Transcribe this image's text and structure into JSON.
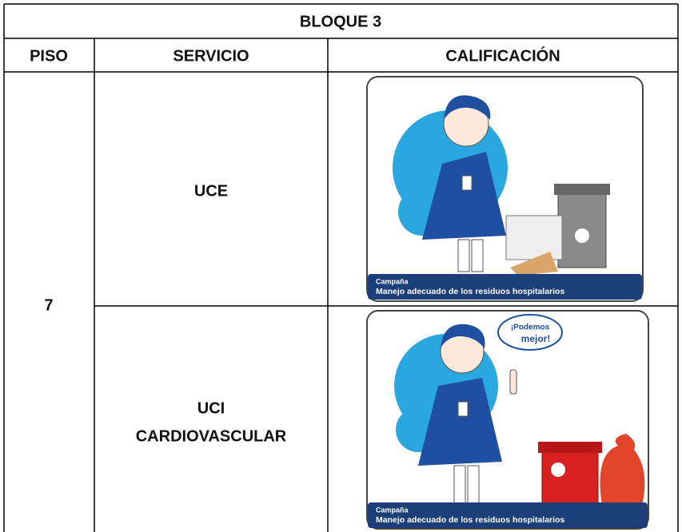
{
  "table": {
    "title": "BLOQUE 3",
    "headers": [
      "PISO",
      "SERVICIO",
      "CALIFICACIÓN"
    ],
    "floor": "7",
    "rows": [
      {
        "service": [
          "UCE"
        ],
        "poster": {
          "label": "Campaña",
          "caption": "Manejo adecuado de los residuos hospitalarios"
        }
      },
      {
        "service": [
          "UCI",
          "CARDIOVASCULAR"
        ],
        "poster": {
          "label": "Campaña",
          "caption": "Manejo adecuado de los residuos hospitalarios",
          "bubble": [
            "¡Podemos",
            "mejor!"
          ]
        }
      }
    ]
  }
}
